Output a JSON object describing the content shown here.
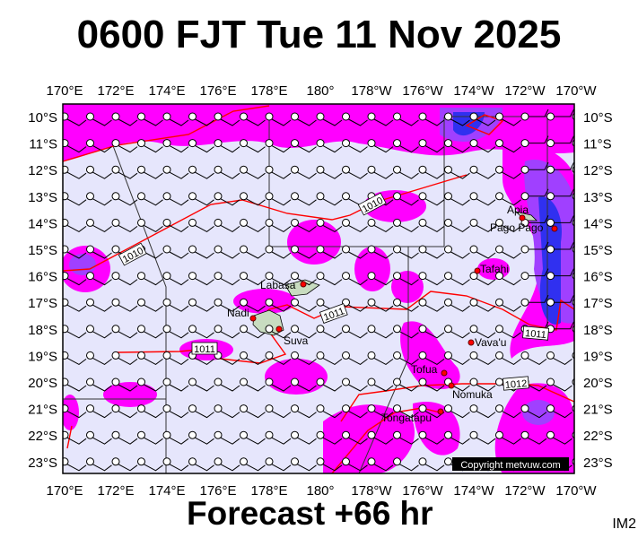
{
  "title": "0600 FJT Tue 11 Nov 2025",
  "footer": "Forecast +66 hr",
  "image_code": "IM2",
  "copyright": "Copyright metvuw.com",
  "longitude_labels": [
    "170°E",
    "172°E",
    "174°E",
    "176°E",
    "178°E",
    "180°",
    "178°W",
    "176°W",
    "174°W",
    "172°W",
    "170°W"
  ],
  "latitude_labels": [
    "10°S",
    "11°S",
    "12°S",
    "13°S",
    "14°S",
    "15°S",
    "16°S",
    "17°S",
    "18°S",
    "19°S",
    "20°S",
    "21°S",
    "22°S",
    "23°S"
  ],
  "places": [
    {
      "name": "Apia",
      "dot": true
    },
    {
      "name": "Pago Pago",
      "dot": true
    },
    {
      "name": "Tafahi",
      "dot": true
    },
    {
      "name": "Labasa",
      "dot": true
    },
    {
      "name": "Nadi",
      "dot": true
    },
    {
      "name": "Suva",
      "dot": true
    },
    {
      "name": "Vava'u",
      "dot": true
    },
    {
      "name": "Tofua",
      "dot": true
    },
    {
      "name": "Nomuka",
      "dot": true
    },
    {
      "name": "Tongatapu",
      "dot": true
    }
  ],
  "isobar_labels": [
    "1010",
    "1010",
    "1011",
    "1011",
    "1011",
    "1012"
  ],
  "colors": {
    "background": "#e6e6fc",
    "rain_light": "#ff00ff",
    "rain_medium": "#a040ff",
    "rain_heavy": "#3030f0",
    "isobar": "#ff0000",
    "land": "#c8dcc0"
  }
}
